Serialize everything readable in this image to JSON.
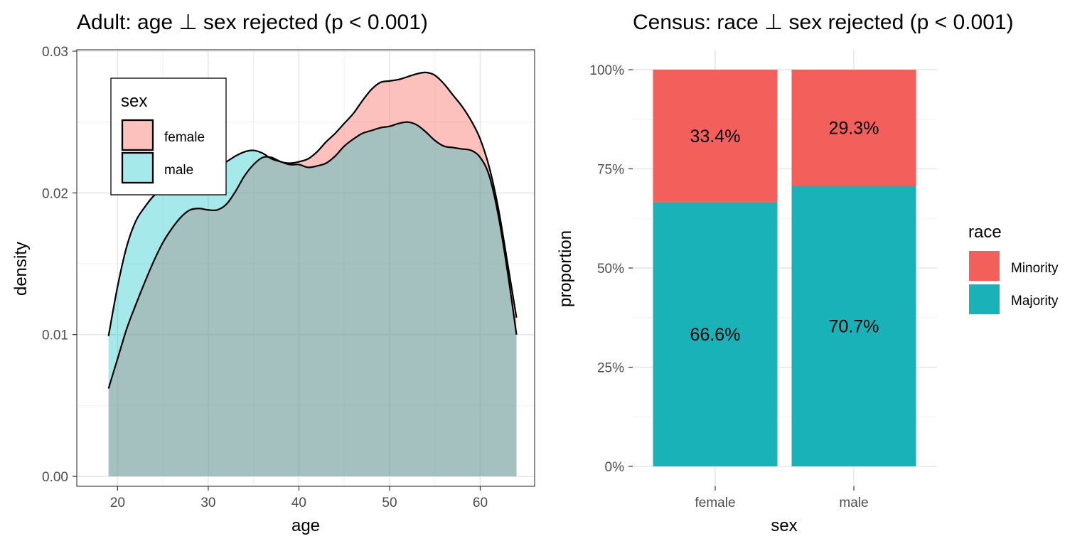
{
  "chart_data": [
    {
      "type": "area",
      "title": "Adult: age ⊥ sex rejected (p < 0.001)",
      "xlabel": "age",
      "ylabel": "density",
      "xlim": [
        15.5,
        66
      ],
      "ylim": [
        -0.0007,
        0.0301
      ],
      "x_ticks": [
        20,
        30,
        40,
        50,
        60
      ],
      "y_ticks": [
        0.0,
        0.01,
        0.02,
        0.03
      ],
      "x_tick_labels": [
        "20",
        "30",
        "40",
        "50",
        "60"
      ],
      "y_tick_labels": [
        "0.00",
        "0.01",
        "0.02",
        "0.03"
      ],
      "grid": true,
      "legend": {
        "title": "sex",
        "placement": "top-left inside",
        "entries": [
          "female",
          "male"
        ]
      },
      "series": [
        {
          "name": "female",
          "color": "#F8766D",
          "fill_alpha": 0.45,
          "x": [
            19,
            20,
            21,
            22,
            23,
            24,
            25,
            26,
            27,
            28,
            29,
            30,
            31,
            32,
            33,
            34,
            35,
            36,
            37,
            38,
            39,
            40,
            41,
            42,
            43,
            44,
            45,
            46,
            47,
            48,
            49,
            50,
            51,
            52,
            53,
            54,
            55,
            56,
            57,
            58,
            59,
            60,
            61,
            62,
            63,
            64
          ],
          "y": [
            0.0062,
            0.0083,
            0.0104,
            0.0121,
            0.0137,
            0.0152,
            0.0165,
            0.0175,
            0.0183,
            0.0188,
            0.0189,
            0.0188,
            0.0188,
            0.0192,
            0.0201,
            0.0212,
            0.022,
            0.0225,
            0.0225,
            0.0222,
            0.0221,
            0.0222,
            0.0224,
            0.0229,
            0.0236,
            0.0242,
            0.0249,
            0.0256,
            0.0265,
            0.0273,
            0.0278,
            0.0279,
            0.028,
            0.0282,
            0.0284,
            0.0285,
            0.0283,
            0.0277,
            0.0269,
            0.0261,
            0.0251,
            0.0238,
            0.0218,
            0.0189,
            0.0151,
            0.0112
          ]
        },
        {
          "name": "male",
          "color": "#00BFC4",
          "fill_alpha": 0.35,
          "x": [
            19,
            20,
            21,
            22,
            23,
            24,
            25,
            26,
            27,
            28,
            29,
            30,
            31,
            32,
            33,
            34,
            35,
            36,
            37,
            38,
            39,
            40,
            41,
            42,
            43,
            44,
            45,
            46,
            47,
            48,
            49,
            50,
            51,
            52,
            53,
            54,
            55,
            56,
            57,
            58,
            59,
            60,
            61,
            62,
            63,
            64
          ],
          "y": [
            0.0099,
            0.0134,
            0.0162,
            0.018,
            0.019,
            0.0198,
            0.0203,
            0.0206,
            0.0207,
            0.0208,
            0.0211,
            0.0215,
            0.0219,
            0.0222,
            0.0226,
            0.0229,
            0.023,
            0.0228,
            0.0224,
            0.0222,
            0.022,
            0.022,
            0.0218,
            0.0219,
            0.0221,
            0.0226,
            0.0233,
            0.0238,
            0.0242,
            0.0244,
            0.0246,
            0.0247,
            0.0249,
            0.025,
            0.0248,
            0.0243,
            0.0237,
            0.0233,
            0.0232,
            0.0231,
            0.023,
            0.0225,
            0.0212,
            0.0184,
            0.0145,
            0.01
          ]
        }
      ]
    },
    {
      "type": "bar",
      "stacked": true,
      "title": "Census: race ⊥ sex rejected (p < 0.001)",
      "xlabel": "sex",
      "ylabel": "proportion",
      "categories": [
        "female",
        "male"
      ],
      "ylim": [
        0,
        1
      ],
      "y_ticks": [
        0,
        0.25,
        0.5,
        0.75,
        1
      ],
      "y_tick_labels": [
        "0%",
        "25%",
        "50%",
        "75%",
        "100%"
      ],
      "grid": true,
      "legend": {
        "title": "race",
        "placement": "right",
        "entries": [
          "Minority",
          "Majority"
        ]
      },
      "series": [
        {
          "name": "Majority",
          "color": "#19B2B8",
          "values": [
            0.666,
            0.707
          ],
          "labels": [
            "66.6%",
            "70.7%"
          ]
        },
        {
          "name": "Minority",
          "color": "#F3605B",
          "values": [
            0.334,
            0.293
          ],
          "labels": [
            "33.4%",
            "29.3%"
          ]
        }
      ]
    }
  ]
}
